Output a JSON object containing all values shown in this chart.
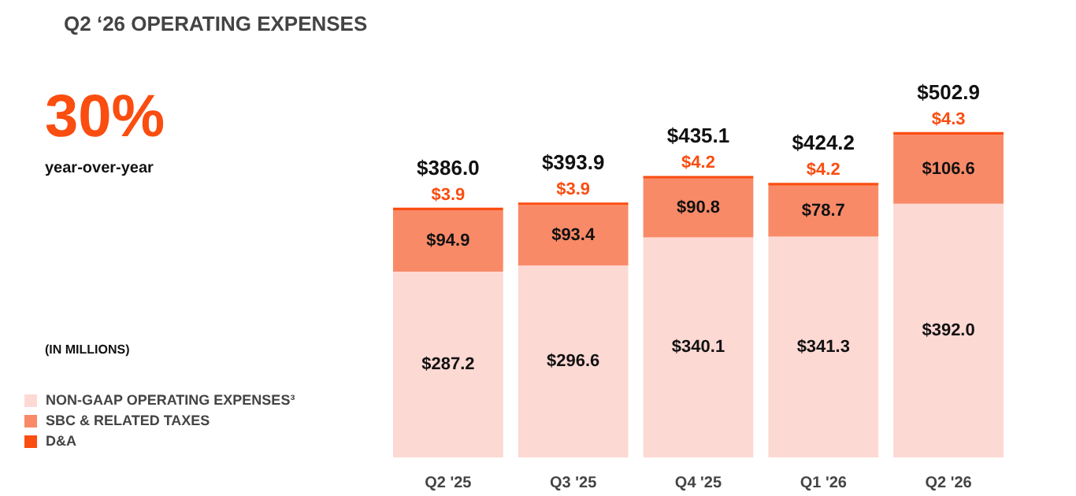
{
  "chart_data": {
    "type": "bar",
    "title": "Q2 ‘26 OPERATING EXPENSES",
    "stacked": true,
    "legend": "bottom left",
    "categories": [
      "Q2 '25",
      "Q3 '25",
      "Q4 '25",
      "Q1 '26",
      "Q2 '26"
    ],
    "series": [
      {
        "name": "NON-GAAP OPERATING EXPENSES³",
        "color": "#fdd9d4",
        "values": [
          287.2,
          296.6,
          340.1,
          341.3,
          392.0
        ],
        "value_labels": [
          "$287.2",
          "$296.6",
          "$340.1",
          "$341.3",
          "$392.0"
        ]
      },
      {
        "name": "SBC & RELATED TAXES",
        "color": "#f98a68",
        "values": [
          94.9,
          93.4,
          90.8,
          78.7,
          106.6
        ],
        "value_labels": [
          "$94.9",
          "$93.4",
          "$90.8",
          "$78.7",
          "$106.6"
        ]
      },
      {
        "name": "D&A",
        "color": "#fa4d10",
        "values": [
          3.9,
          3.9,
          4.2,
          4.2,
          4.3
        ],
        "value_labels": [
          "$3.9",
          "$3.9",
          "$4.2",
          "$4.2",
          "$4.3"
        ]
      }
    ],
    "totals": [
      "$386.0",
      "$393.9",
      "$435.1",
      "$424.2",
      "$502.9"
    ],
    "annotations": [
      "30%",
      "year-over-year",
      "(IN MILLIONS)"
    ]
  }
}
